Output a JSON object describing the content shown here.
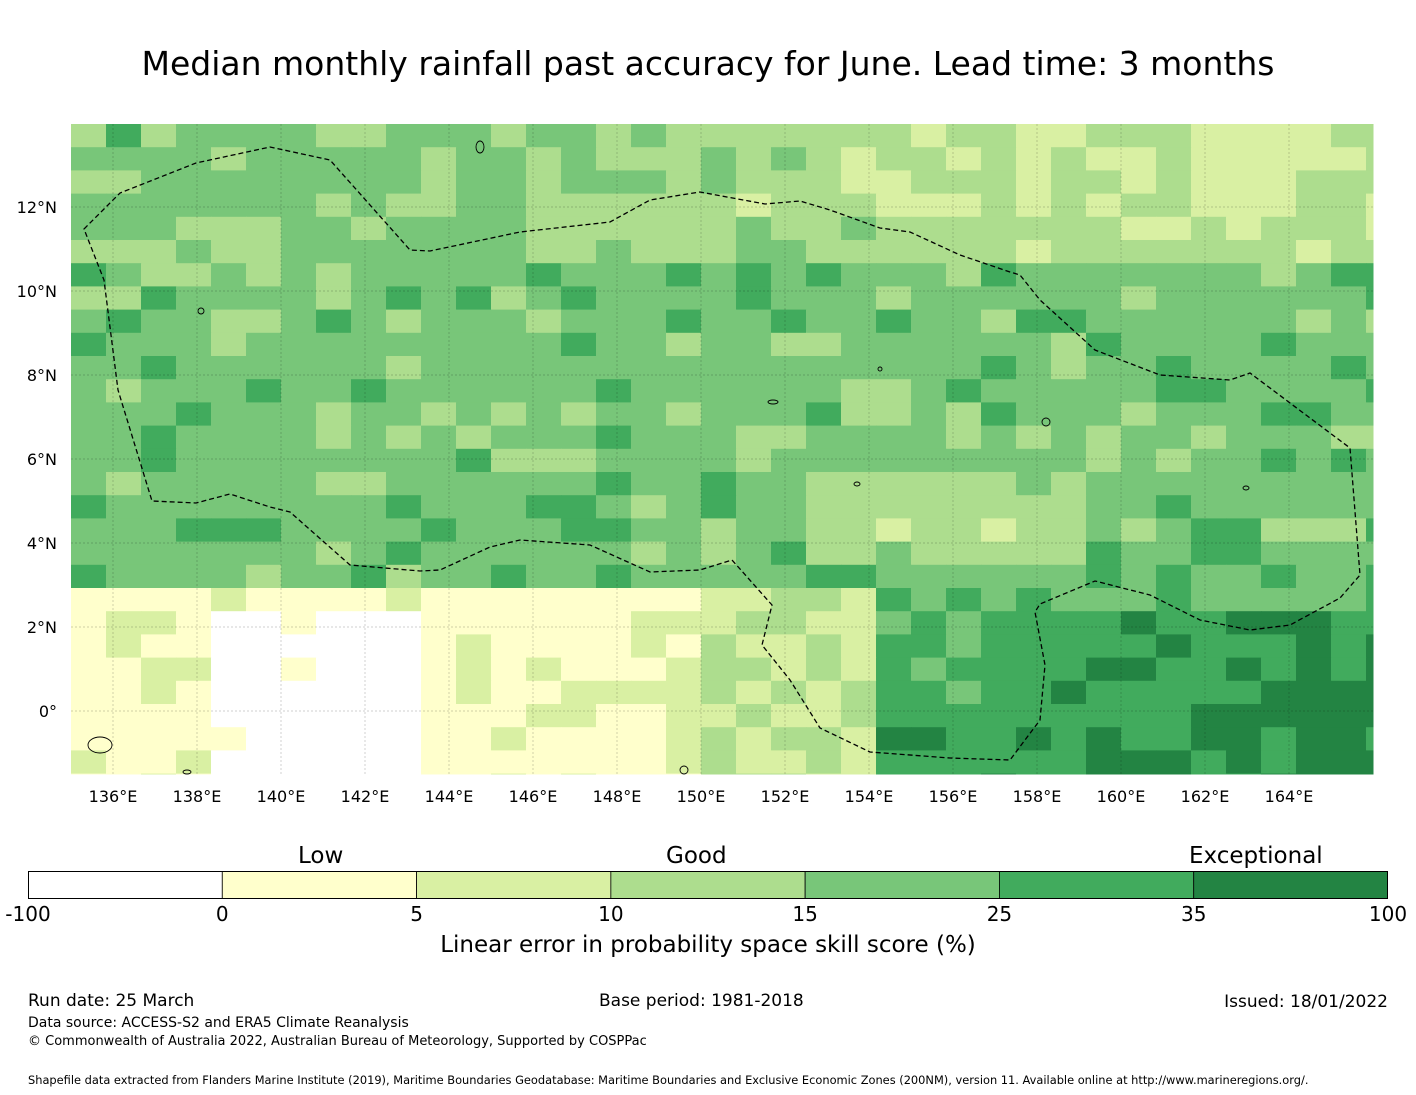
{
  "title": "Median monthly rainfall past accuracy for June. Lead time: 3 months",
  "map": {
    "x_ticks": [
      "136°E",
      "138°E",
      "140°E",
      "142°E",
      "144°E",
      "146°E",
      "148°E",
      "150°E",
      "152°E",
      "154°E",
      "156°E",
      "158°E",
      "160°E",
      "162°E",
      "164°E"
    ],
    "y_ticks": [
      "12°N",
      "10°N",
      "8°N",
      "6°N",
      "4°N",
      "2°N",
      "0°"
    ],
    "lon_range": [
      135,
      166
    ],
    "lat_range": [
      -1.5,
      14
    ],
    "grid": true,
    "boundary": "dashed exclusive economic zone outline"
  },
  "colorbar": {
    "categories": [
      "Low",
      "Good",
      "Exceptional"
    ],
    "ticks": [
      "-100",
      "0",
      "5",
      "10",
      "15",
      "25",
      "35",
      "100"
    ],
    "colors": [
      "#ffffff",
      "#ffffcc",
      "#d9f0a3",
      "#addd8e",
      "#78c679",
      "#41ab5d",
      "#238443"
    ],
    "label": "Linear error in probability space skill score (%)"
  },
  "footer": {
    "run_date": "Run date: 25 March",
    "base_period": "Base period: 1981-2018",
    "issued": "Issued: 18/01/2022",
    "data_source": "Data source: ACCESS-S2 and ERA5 Climate Reanalysis",
    "copyright": "© Commonwealth of Australia 2022, Australian Bureau of Meteorology, Supported by COSPPac",
    "shapefile": "Shapefile data extracted from Flanders Marine Institute (2019), Maritime Boundaries Geodatabase: Maritime Boundaries and Exclusive Economic Zones (200NM), version 11. Available online at http://www.marineregions.org/."
  }
}
